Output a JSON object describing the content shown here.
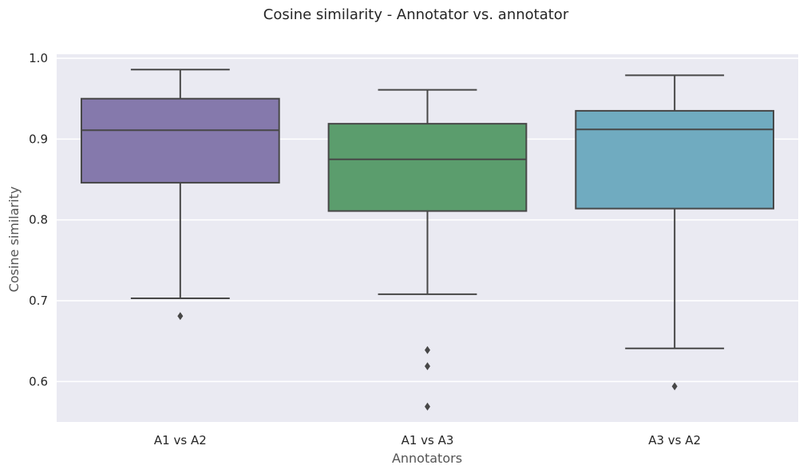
{
  "chart_data": {
    "type": "box",
    "title": "Cosine similarity - Annotator vs. annotator",
    "xlabel": "Annotators",
    "ylabel": "Cosine similarity",
    "ylim": [
      0.55,
      1.005
    ],
    "yticks": [
      0.6,
      0.7,
      0.8,
      0.9,
      1.0
    ],
    "ytick_labels": [
      "0.6",
      "0.7",
      "0.8",
      "0.9",
      "1.0"
    ],
    "grid": true,
    "categories": [
      "A1 vs A2",
      "A1 vs A3",
      "A3 vs A2"
    ],
    "boxes": [
      {
        "category": "A1 vs A2",
        "color": "#8579ac",
        "whisker_low": 0.703,
        "q1": 0.846,
        "median": 0.911,
        "q3": 0.95,
        "whisker_high": 0.986,
        "outliers": [
          0.681
        ]
      },
      {
        "category": "A1 vs A3",
        "color": "#5b9d6d",
        "whisker_low": 0.708,
        "q1": 0.811,
        "median": 0.875,
        "q3": 0.919,
        "whisker_high": 0.961,
        "outliers": [
          0.639,
          0.619,
          0.569
        ]
      },
      {
        "category": "A3 vs A2",
        "color": "#70abc0",
        "whisker_low": 0.641,
        "q1": 0.814,
        "median": 0.912,
        "q3": 0.935,
        "whisker_high": 0.979,
        "outliers": [
          0.594
        ]
      }
    ],
    "colors": {
      "background": "#eaeaf2",
      "grid": "#ffffff",
      "line": "#474747",
      "text": "#262626",
      "label": "#555555"
    }
  }
}
